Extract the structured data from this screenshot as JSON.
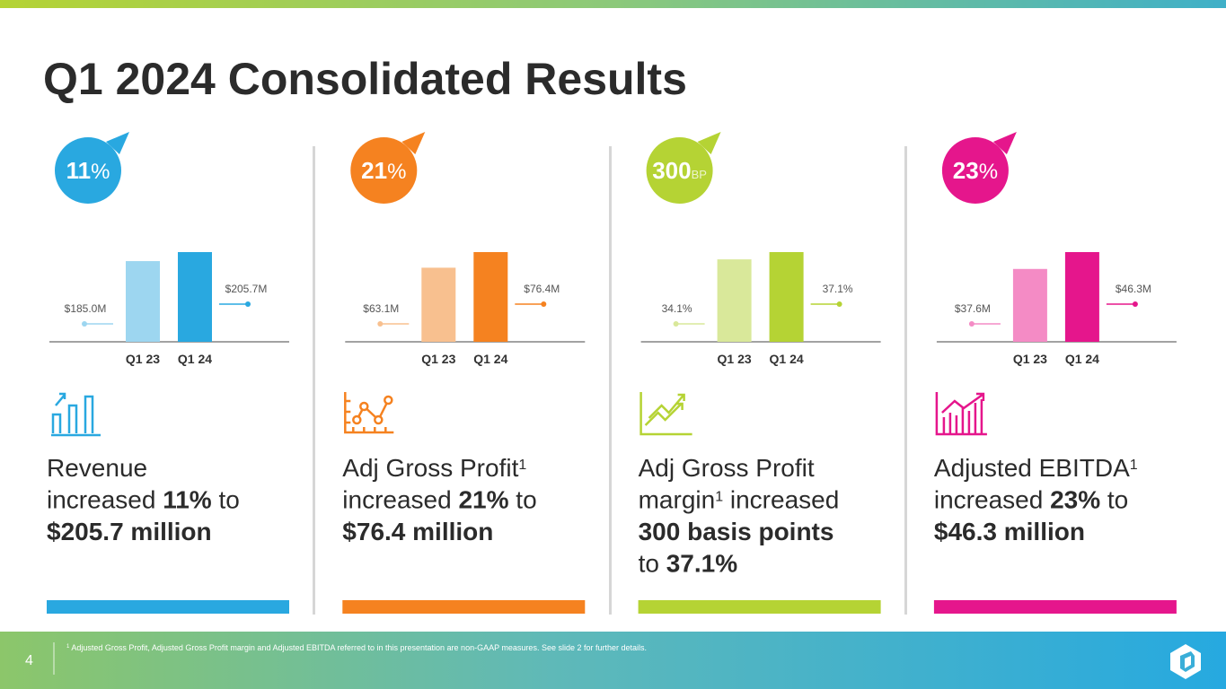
{
  "title": "Q1 2024 Consolidated Results",
  "chart_data": [
    {
      "type": "bar",
      "categories": [
        "Q1 23",
        "Q1 24"
      ],
      "values": [
        185.0,
        205.7
      ],
      "value_labels": [
        "$185.0M",
        "$205.7M"
      ],
      "colors": [
        "#9dd6f0",
        "#29a8e0"
      ],
      "badge": {
        "number": "11",
        "unit": "%"
      },
      "description": [
        [
          {
            "text": "Revenue"
          }
        ],
        [
          {
            "text": "increased "
          },
          {
            "text": "11%",
            "style": "bold"
          },
          {
            "text": " to"
          }
        ],
        [
          {
            "text": "$205.7 million",
            "style": "bold"
          }
        ]
      ]
    },
    {
      "type": "bar",
      "categories": [
        "Q1 23",
        "Q1 24"
      ],
      "values": [
        63.1,
        76.4
      ],
      "value_labels": [
        "$63.1M",
        "$76.4M"
      ],
      "colors": [
        "#f8c08f",
        "#f58220"
      ],
      "badge": {
        "number": "21",
        "unit": "%"
      },
      "description": [
        [
          {
            "text": "Adj Gross Profit"
          },
          {
            "text": "1",
            "style": "sup"
          }
        ],
        [
          {
            "text": "increased "
          },
          {
            "text": "21%",
            "style": "bold"
          },
          {
            "text": " to"
          }
        ],
        [
          {
            "text": "$76.4 million",
            "style": "bold"
          }
        ]
      ]
    },
    {
      "type": "bar",
      "categories": [
        "Q1 23",
        "Q1 24"
      ],
      "values": [
        34.1,
        37.1
      ],
      "value_labels": [
        "34.1%",
        "37.1%"
      ],
      "colors": [
        "#d9e89a",
        "#b5d334"
      ],
      "badge": {
        "number": "300",
        "unit": "BP"
      },
      "description": [
        [
          {
            "text": "Adj Gross Profit"
          }
        ],
        [
          {
            "text": "margin"
          },
          {
            "text": "1",
            "style": "sup"
          },
          {
            "text": " increased"
          }
        ],
        [
          {
            "text": "300 basis points",
            "style": "bold"
          }
        ],
        [
          {
            "text": "to "
          },
          {
            "text": "37.1%",
            "style": "bold"
          }
        ]
      ]
    },
    {
      "type": "bar",
      "categories": [
        "Q1 23",
        "Q1 24"
      ],
      "values": [
        37.6,
        46.3
      ],
      "value_labels": [
        "$37.6M",
        "$46.3M"
      ],
      "colors": [
        "#f48bc5",
        "#e5168c"
      ],
      "badge": {
        "number": "23",
        "unit": "%"
      },
      "description": [
        [
          {
            "text": "Adjusted EBITDA"
          },
          {
            "text": "1",
            "style": "sup"
          }
        ],
        [
          {
            "text": "increased "
          },
          {
            "text": "23%",
            "style": "bold"
          },
          {
            "text": " to"
          }
        ],
        [
          {
            "text": "$46.3 million",
            "style": "bold"
          }
        ]
      ]
    }
  ],
  "footnote": {
    "marker": "1",
    "text": " Adjusted Gross Profit, Adjusted Gross Profit margin and Adjusted EBITDA referred to in this presentation are non-GAAP measures. See slide 2 for further details."
  },
  "page_number": "4"
}
